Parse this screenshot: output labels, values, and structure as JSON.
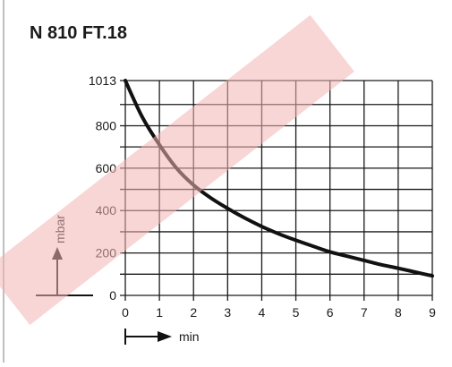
{
  "title": "N 810 FT.18",
  "chart_data": {
    "type": "line",
    "title": "N 810 FT.18",
    "xlabel": "min",
    "ylabel": "mbar",
    "xlim": [
      0,
      9
    ],
    "ylim": [
      0,
      1013
    ],
    "x_ticks": [
      "0",
      "1",
      "2",
      "3",
      "4",
      "5",
      "6",
      "7",
      "8",
      "9"
    ],
    "y_ticks": [
      "0",
      "200",
      "400",
      "600",
      "800",
      "1013"
    ],
    "y_tick_values": [
      0,
      200,
      400,
      600,
      800,
      1013
    ],
    "grid": true,
    "series": [
      {
        "x": [
          0,
          0.5,
          1,
          1.5,
          2,
          2.5,
          3,
          3.5,
          4,
          4.5,
          5,
          5.5,
          6,
          6.5,
          7,
          7.5,
          8,
          8.5,
          9
        ],
        "y": [
          1013,
          840,
          710,
          600,
          520,
          460,
          410,
          365,
          325,
          290,
          260,
          232,
          205,
          185,
          165,
          145,
          128,
          110,
          92
        ]
      }
    ],
    "colors": {
      "line": "#111111",
      "grid": "#1a1a1a",
      "watermark": "#f7c9c9"
    }
  }
}
